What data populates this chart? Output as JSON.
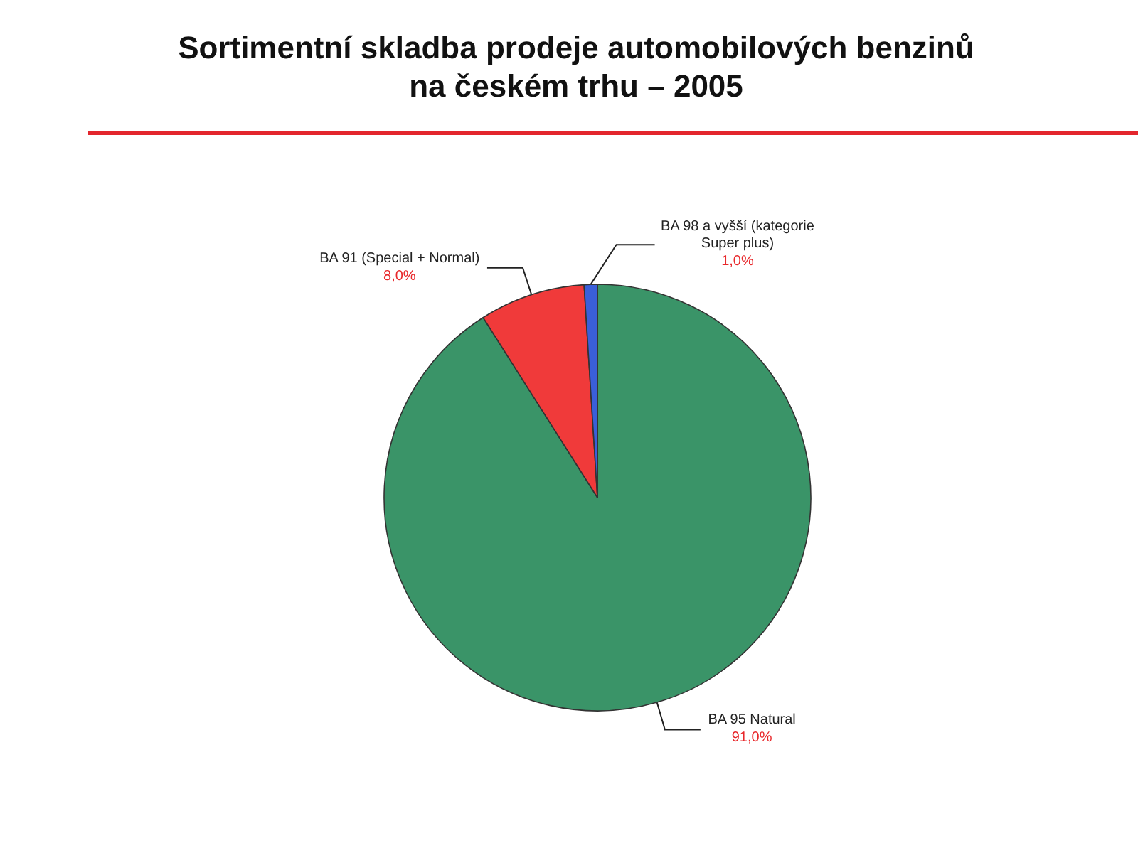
{
  "chart_data": {
    "type": "pie",
    "title": "Sortimentní skladba prodeje automobilových benzinů na českém trhu – 2005",
    "categories": [
      "BA 95 Natural",
      "BA 91 (Special + Normal)",
      "BA 98 a vyšší (kategorie Super plus)"
    ],
    "values": [
      91,
      8,
      1
    ],
    "colors": [
      "#3a9468",
      "#f03a3a",
      "#3a5fd9"
    ],
    "value_labels": [
      "91,0%",
      "8,0%",
      "1,0%"
    ],
    "legend": false
  }
}
